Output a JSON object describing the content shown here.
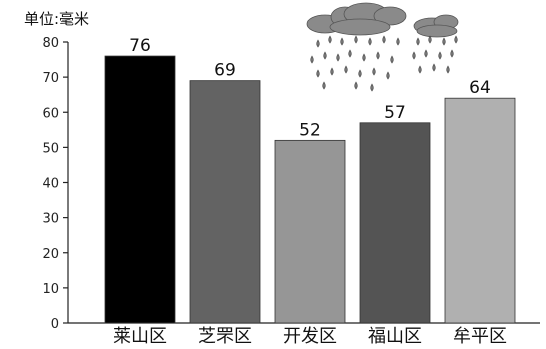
{
  "chart_data": {
    "type": "bar",
    "ylabel": "单位:毫米",
    "categories": [
      "莱山区",
      "芝罘区",
      "开发区",
      "福山区",
      "牟平区"
    ],
    "values": [
      76,
      69,
      52,
      57,
      64
    ],
    "data_labels": [
      "76",
      "69",
      "52",
      "57",
      "64"
    ],
    "bar_colors": [
      "#000000",
      "#636363",
      "#969696",
      "#545454",
      "#b0b0b0"
    ],
    "ylim": [
      0,
      80
    ],
    "yticks": [
      0,
      10,
      20,
      30,
      40,
      50,
      60,
      70,
      80
    ],
    "ytick_labels": [
      "0",
      "10",
      "20",
      "30",
      "40",
      "50",
      "60",
      "70",
      "80"
    ],
    "grid": false,
    "legend": "none",
    "decoration": "rain-cloud-icon"
  }
}
